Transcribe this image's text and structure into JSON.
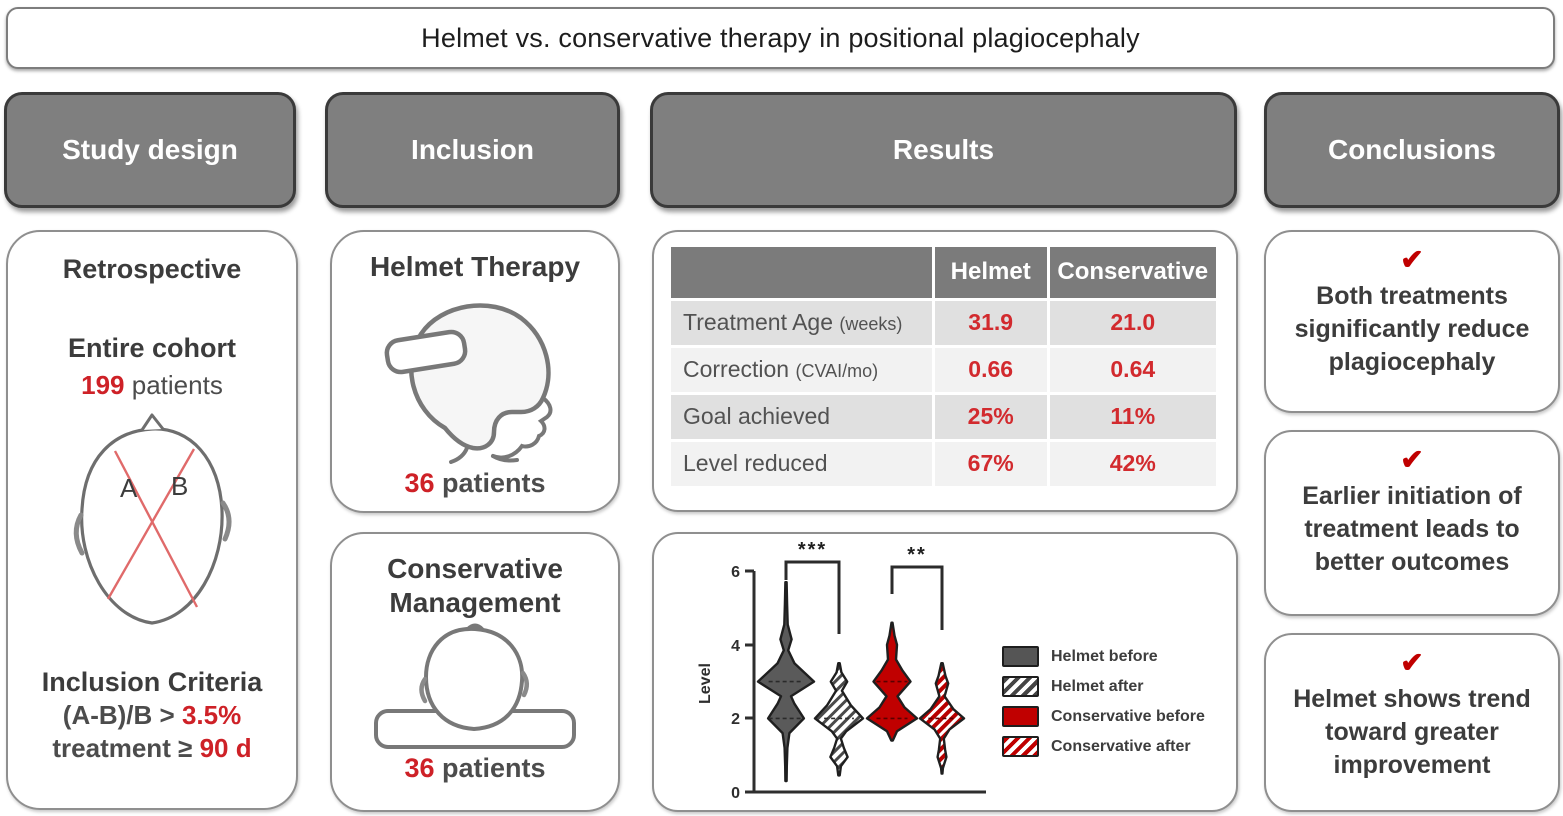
{
  "title": "Helmet vs. conservative therapy in positional plagiocephaly",
  "colors": {
    "header_bg": "#7f7f7f",
    "header_border": "#3a3a3a",
    "accent_red": "#ce2127",
    "violin_red": "#c00000",
    "violin_gray": "#5a5a5a",
    "text_dark": "#3c3c3c"
  },
  "columns": {
    "study_design": {
      "header": "Study design",
      "retrospective": "Retrospective",
      "cohort_label": "Entire cohort",
      "cohort_n": "199",
      "cohort_unit": "patients",
      "diagram": {
        "label_a": "A",
        "label_b": "B"
      },
      "criteria_title": "Inclusion Criteria",
      "criteria_line1_pre": "(A-B)/B > ",
      "criteria_line1_value": "3.5%",
      "criteria_line2_pre": "treatment ≥ ",
      "criteria_line2_value": "90 d"
    },
    "inclusion": {
      "header": "Inclusion",
      "helmet": {
        "title": "Helmet Therapy",
        "n": "36",
        "unit": "patients"
      },
      "conservative": {
        "title_line1": "Conservative",
        "title_line2": "Management",
        "n": "36",
        "unit": "patients"
      }
    },
    "results": {
      "header": "Results",
      "table": {
        "col_headers": [
          "Helmet",
          "Conservative"
        ],
        "rows": [
          {
            "label": "Treatment Age",
            "label_small": "(weeks)",
            "helmet": "31.9",
            "conservative": "21.0"
          },
          {
            "label": "Correction",
            "label_small": "(CVAI/mo)",
            "helmet": "0.66",
            "conservative": "0.64"
          },
          {
            "label": "Goal achieved",
            "label_small": "",
            "helmet": "25%",
            "conservative": "11%"
          },
          {
            "label": "Level reduced",
            "label_small": "",
            "helmet": "67%",
            "conservative": "42%"
          }
        ]
      },
      "plot": {
        "ylabel": "Level",
        "yticks_top_to_bottom": [
          "6",
          "4",
          "2",
          "0"
        ],
        "legend": [
          "Helmet before",
          "Helmet after",
          "Conservative before",
          "Conservative after"
        ]
      }
    },
    "conclusions": {
      "header": "Conclusions",
      "check": "✔",
      "items": [
        "Both treatments significantly reduce plagiocephaly",
        "Earlier initiation of treatment leads to better outcomes",
        "Helmet shows trend toward greater improvement"
      ]
    }
  },
  "chart_data": {
    "type": "violin",
    "title": "",
    "xlabel": "",
    "ylabel": "Level",
    "ylim": [
      0,
      6
    ],
    "yticks": [
      0,
      2,
      4,
      6
    ],
    "grid": false,
    "legend_position": "right",
    "groups": [
      {
        "name": "Helmet before",
        "fill": "solid",
        "color": "#5a5a5a",
        "range": [
          0.3,
          5.7
        ],
        "modes": [
          3,
          2
        ],
        "median": 3,
        "dashed_lines": [
          3,
          2
        ],
        "profile": [
          [
            5.7,
            0.02
          ],
          [
            5.1,
            0.04
          ],
          [
            4.55,
            0.06
          ],
          [
            4.15,
            0.2
          ],
          [
            3.85,
            0.08
          ],
          [
            3.5,
            0.3
          ],
          [
            3.0,
            1.0
          ],
          [
            2.6,
            0.18
          ],
          [
            2.4,
            0.3
          ],
          [
            2.0,
            0.64
          ],
          [
            1.6,
            0.12
          ],
          [
            1.2,
            0.05
          ],
          [
            0.7,
            0.03
          ],
          [
            0.3,
            0.02
          ]
        ]
      },
      {
        "name": "Helmet after",
        "fill": "hatched",
        "color": "#4a4a4a",
        "range": [
          0.45,
          3.5
        ],
        "modes": [
          2,
          3,
          1
        ],
        "median": 2,
        "dashed_lines": [
          2
        ],
        "profile": [
          [
            3.5,
            0.03
          ],
          [
            3.25,
            0.1
          ],
          [
            3.0,
            0.34
          ],
          [
            2.75,
            0.12
          ],
          [
            2.35,
            0.5
          ],
          [
            2.0,
            1.0
          ],
          [
            1.65,
            0.3
          ],
          [
            1.45,
            0.08
          ],
          [
            1.2,
            0.2
          ],
          [
            0.95,
            0.36
          ],
          [
            0.7,
            0.08
          ],
          [
            0.45,
            0.03
          ]
        ]
      },
      {
        "name": "Conservative before",
        "fill": "solid",
        "color": "#c00000",
        "range": [
          1.4,
          4.6
        ],
        "modes": [
          2,
          3
        ],
        "median": 2,
        "dashed_lines": [
          3,
          2
        ],
        "profile": [
          [
            4.6,
            0.02
          ],
          [
            4.25,
            0.1
          ],
          [
            4.0,
            0.2
          ],
          [
            3.6,
            0.16
          ],
          [
            3.3,
            0.42
          ],
          [
            3.0,
            0.74
          ],
          [
            2.6,
            0.22
          ],
          [
            2.3,
            0.5
          ],
          [
            2.0,
            1.0
          ],
          [
            1.65,
            0.2
          ],
          [
            1.4,
            0.03
          ]
        ]
      },
      {
        "name": "Conservative after",
        "fill": "hatched",
        "color": "#c00000",
        "range": [
          0.5,
          3.5
        ],
        "modes": [
          2,
          3,
          1
        ],
        "median": 2,
        "dashed_lines": [
          2
        ],
        "profile": [
          [
            3.5,
            0.03
          ],
          [
            3.15,
            0.16
          ],
          [
            2.95,
            0.28
          ],
          [
            2.6,
            0.12
          ],
          [
            2.25,
            0.52
          ],
          [
            2.0,
            1.0
          ],
          [
            1.7,
            0.34
          ],
          [
            1.45,
            0.08
          ],
          [
            1.15,
            0.14
          ],
          [
            0.95,
            0.2
          ],
          [
            0.65,
            0.04
          ],
          [
            0.5,
            0.02
          ]
        ]
      }
    ],
    "significance": [
      {
        "between": [
          "Helmet before",
          "Helmet after"
        ],
        "label": "***"
      },
      {
        "between": [
          "Conservative before",
          "Conservative after"
        ],
        "label": "**"
      }
    ]
  }
}
